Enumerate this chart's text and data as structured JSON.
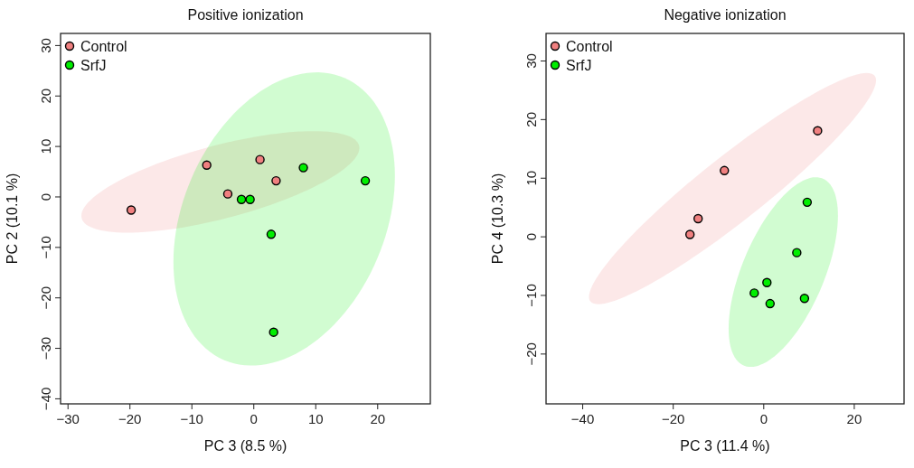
{
  "chart_data": [
    {
      "type": "scatter",
      "title": "Positive ionization",
      "xlabel": "PC 3 (8.5 %)",
      "ylabel": "PC 2 (10.1 %)",
      "xlim": [
        -31.2,
        28.5
      ],
      "ylim": [
        -41,
        32.4
      ],
      "xticks": [
        -30,
        -20,
        -10,
        0,
        10,
        20
      ],
      "yticks": [
        -40,
        -30,
        -20,
        -10,
        0,
        10,
        20,
        30
      ],
      "legend": "top left",
      "marker": "circle",
      "series": [
        {
          "name": "Control",
          "color": "#f08080",
          "x": [
            -19.8,
            -7.6,
            -4.2,
            1.0,
            3.6
          ],
          "values": [
            -2.6,
            6.3,
            0.6,
            7.4,
            3.2
          ]
        },
        {
          "name": "SrfJ",
          "color": "#00ee00",
          "x": [
            -2.0,
            -0.6,
            8.0,
            18.0,
            2.8,
            3.2
          ],
          "values": [
            -0.5,
            -0.5,
            5.8,
            3.2,
            -7.4,
            -26.8
          ]
        }
      ]
    },
    {
      "type": "scatter",
      "title": "Negative ionization",
      "xlabel": "PC 3 (11.4 %)",
      "ylabel": "PC 4 (10.3 %)",
      "xlim": [
        -48.1,
        31
      ],
      "ylim": [
        -28.5,
        34.7
      ],
      "xticks": [
        -40,
        -20,
        0,
        20
      ],
      "yticks": [
        -20,
        -10,
        0,
        10,
        20,
        30
      ],
      "legend": "top left",
      "marker": "circle",
      "series": [
        {
          "name": "Control",
          "color": "#f08080",
          "x": [
            -16.3,
            -14.5,
            -8.7,
            11.9
          ],
          "values": [
            0.4,
            3.1,
            11.3,
            18.1
          ]
        },
        {
          "name": "SrfJ",
          "color": "#00ee00",
          "x": [
            9.6,
            7.3,
            0.7,
            -2.1,
            1.4,
            9.0
          ],
          "values": [
            5.9,
            -2.7,
            -7.8,
            -9.6,
            -11.4,
            -10.5
          ]
        }
      ]
    }
  ]
}
